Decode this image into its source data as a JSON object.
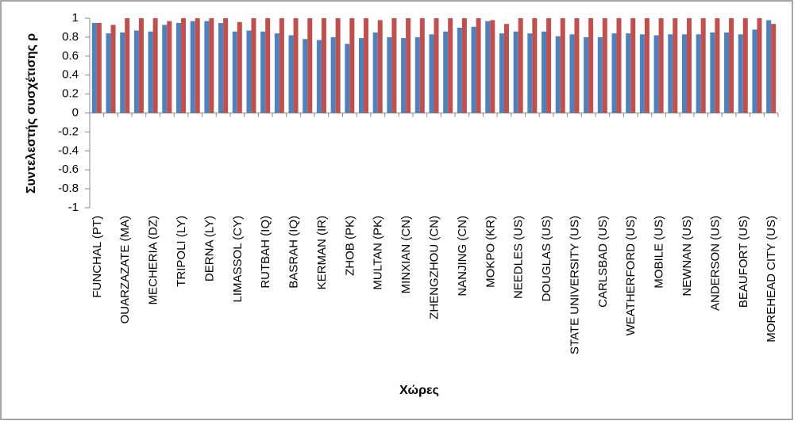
{
  "chart_data": {
    "type": "bar",
    "y_label": "Συντελεστής συσχέτισης ρ",
    "x_label": "Χώρες",
    "categories": [
      "FUNCHAL (PT)",
      null,
      "OUARZAZATE (MA)",
      null,
      "MECHERIA (DZ)",
      null,
      "TRIPOLI (LY)",
      null,
      "DERNA (LY)",
      null,
      "LIMASSOL (CY)",
      null,
      "RUTBAH (IQ)",
      null,
      "BASRAH (IQ)",
      null,
      "KERMAN (IR)",
      null,
      "ZHOB (PK)",
      null,
      "MULTAN (PK)",
      null,
      "MINXIAN (CN)",
      null,
      "ZHENGZHOU (CN)",
      null,
      "NANJING (CN)",
      null,
      "MOKPO (KR)",
      null,
      "NEEDLES (US)",
      null,
      "DOUGLAS (US)",
      null,
      "STATE UNIVERSITY (US)",
      null,
      "CARLSBAD (US)",
      null,
      "WEATHERFORD (US)",
      null,
      "MOBILE (US)",
      null,
      "NEWNAN (US)",
      null,
      "ANDERSON (US)",
      null,
      "BEAUFORT (US)",
      null,
      "MOREHEAD CITY (US)"
    ],
    "series": [
      {
        "color": "#4f81bd",
        "values": [
          0.95,
          0.84,
          0.85,
          0.87,
          0.86,
          0.93,
          0.95,
          0.97,
          0.97,
          0.95,
          0.86,
          0.87,
          0.86,
          0.84,
          0.82,
          0.78,
          0.77,
          0.8,
          0.73,
          0.79,
          0.85,
          0.8,
          0.79,
          0.8,
          0.83,
          0.86,
          0.9,
          0.91,
          0.97,
          0.84,
          0.86,
          0.84,
          0.86,
          0.81,
          0.83,
          0.8,
          0.8,
          0.84,
          0.84,
          0.83,
          0.82,
          0.83,
          0.83,
          0.83,
          0.85,
          0.85,
          0.83,
          0.88,
          0.98
        ]
      },
      {
        "color": "#c0504d",
        "values": [
          0.95,
          0.93,
          1,
          1,
          1,
          0.97,
          1,
          1,
          1,
          1,
          0.96,
          1,
          1,
          1,
          1,
          1,
          1,
          1,
          1,
          1,
          0.98,
          1,
          1,
          1,
          1,
          1,
          1,
          1,
          0.98,
          0.94,
          1,
          1,
          1,
          1,
          1,
          1,
          1,
          1,
          1,
          1,
          1,
          1,
          1,
          1,
          1,
          1,
          1,
          1,
          0.94
        ]
      }
    ],
    "ylim": [
      -1,
      1
    ],
    "yticks": [
      -1,
      -0.8,
      -0.6,
      -0.4,
      -0.2,
      0,
      0.2,
      0.4,
      0.6,
      0.8,
      1
    ]
  }
}
